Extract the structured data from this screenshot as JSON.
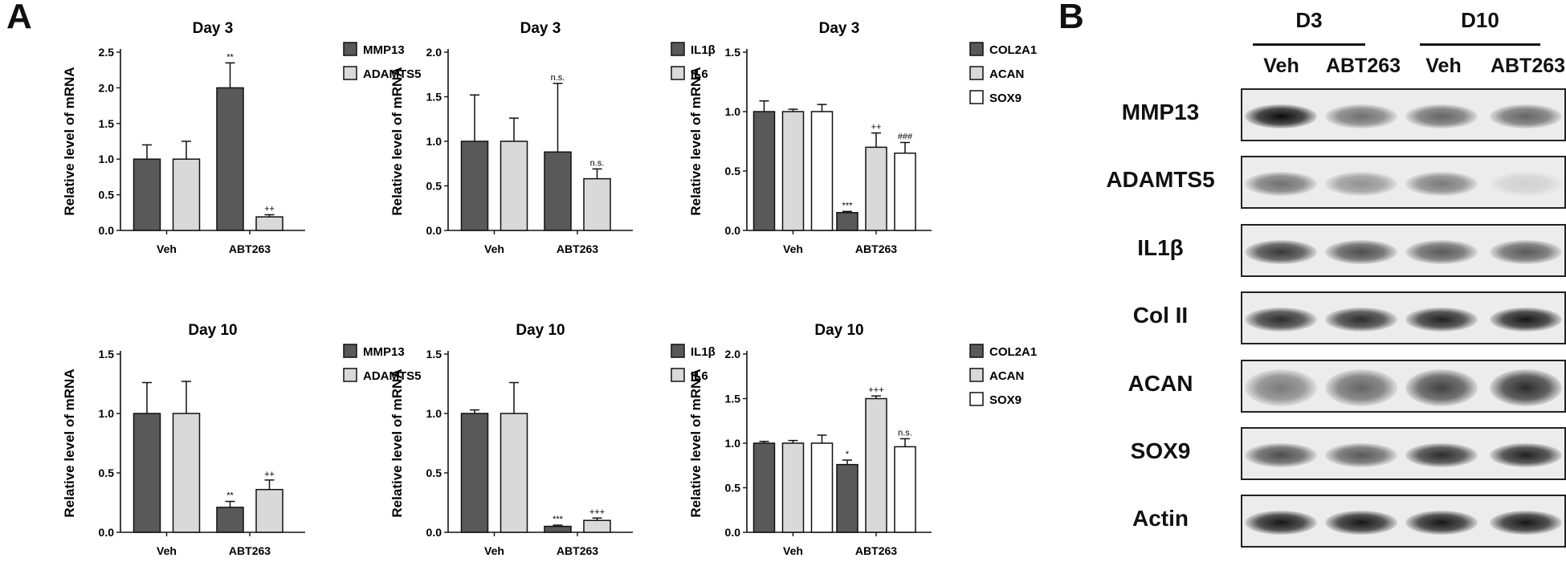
{
  "panel_a": {
    "label": "A"
  },
  "panel_b": {
    "label": "B"
  },
  "chart_data": [
    {
      "type": "bar",
      "title": "Day 3",
      "ylabel": "Relative level of mRNA",
      "ylim": [
        0,
        2.5
      ],
      "yticks": [
        "0.0",
        "0.5",
        "1.0",
        "1.5",
        "2.0",
        "2.5"
      ],
      "categories": [
        "Veh",
        "ABT263"
      ],
      "series": [
        {
          "name": "MMP13",
          "color": "#595959",
          "values": [
            1.0,
            2.0
          ],
          "errors": [
            0.2,
            0.35
          ],
          "sig": [
            "",
            "**"
          ]
        },
        {
          "name": "ADAMTS5",
          "color": "#d9d9d9",
          "values": [
            1.0,
            0.19
          ],
          "errors": [
            0.25,
            0.03
          ],
          "sig": [
            "",
            "++"
          ]
        }
      ]
    },
    {
      "type": "bar",
      "title": "Day 3",
      "ylabel": "Relative level of mRNA",
      "ylim": [
        0,
        2.0
      ],
      "yticks": [
        "0.0",
        "0.5",
        "1.0",
        "1.5",
        "2.0"
      ],
      "categories": [
        "Veh",
        "ABT263"
      ],
      "series": [
        {
          "name": "IL1β",
          "color": "#595959",
          "values": [
            1.0,
            0.88
          ],
          "errors": [
            0.52,
            0.77
          ],
          "sig": [
            "",
            "n.s."
          ]
        },
        {
          "name": "IL6",
          "color": "#d9d9d9",
          "values": [
            1.0,
            0.58
          ],
          "errors": [
            0.26,
            0.11
          ],
          "sig": [
            "",
            "n.s."
          ]
        }
      ]
    },
    {
      "type": "bar",
      "title": "Day 3",
      "ylabel": "Relative level of mRNA",
      "ylim": [
        0,
        1.5
      ],
      "yticks": [
        "0.0",
        "0.5",
        "1.0",
        "1.5"
      ],
      "categories": [
        "Veh",
        "ABT263"
      ],
      "series": [
        {
          "name": "COL2A1",
          "color": "#595959",
          "values": [
            1.0,
            0.15
          ],
          "errors": [
            0.09,
            0.01
          ],
          "sig": [
            "",
            "***"
          ]
        },
        {
          "name": "ACAN",
          "color": "#d9d9d9",
          "values": [
            1.0,
            0.7
          ],
          "errors": [
            0.02,
            0.12
          ],
          "sig": [
            "",
            "++"
          ]
        },
        {
          "name": "SOX9",
          "color": "#ffffff",
          "values": [
            1.0,
            0.65
          ],
          "errors": [
            0.06,
            0.09
          ],
          "sig": [
            "",
            "###"
          ]
        }
      ]
    },
    {
      "type": "bar",
      "title": "Day 10",
      "ylabel": "Relative level of mRNA",
      "ylim": [
        0,
        1.5
      ],
      "yticks": [
        "0.0",
        "0.5",
        "1.0",
        "1.5"
      ],
      "categories": [
        "Veh",
        "ABT263"
      ],
      "series": [
        {
          "name": "MMP13",
          "color": "#595959",
          "values": [
            1.0,
            0.21
          ],
          "errors": [
            0.26,
            0.05
          ],
          "sig": [
            "",
            "**"
          ]
        },
        {
          "name": "ADAMTS5",
          "color": "#d9d9d9",
          "values": [
            1.0,
            0.36
          ],
          "errors": [
            0.27,
            0.08
          ],
          "sig": [
            "",
            "++"
          ]
        }
      ]
    },
    {
      "type": "bar",
      "title": "Day 10",
      "ylabel": "Relative level of mRNA",
      "ylim": [
        0,
        1.5
      ],
      "yticks": [
        "0.0",
        "0.5",
        "1.0",
        "1.5"
      ],
      "categories": [
        "Veh",
        "ABT263"
      ],
      "series": [
        {
          "name": "IL1β",
          "color": "#595959",
          "values": [
            1.0,
            0.05
          ],
          "errors": [
            0.03,
            0.01
          ],
          "sig": [
            "",
            "***"
          ]
        },
        {
          "name": "IL6",
          "color": "#d9d9d9",
          "values": [
            1.0,
            0.1
          ],
          "errors": [
            0.26,
            0.02
          ],
          "sig": [
            "",
            "+++"
          ]
        }
      ]
    },
    {
      "type": "bar",
      "title": "Day 10",
      "ylabel": "Relative level of mRNA",
      "ylim": [
        0,
        2.0
      ],
      "yticks": [
        "0.0",
        "0.5",
        "1.0",
        "1.5",
        "2.0"
      ],
      "categories": [
        "Veh",
        "ABT263"
      ],
      "series": [
        {
          "name": "COL2A1",
          "color": "#595959",
          "values": [
            1.0,
            0.76
          ],
          "errors": [
            0.02,
            0.05
          ],
          "sig": [
            "",
            "*"
          ]
        },
        {
          "name": "ACAN",
          "color": "#d9d9d9",
          "values": [
            1.0,
            1.5
          ],
          "errors": [
            0.03,
            0.03
          ],
          "sig": [
            "",
            "+++"
          ]
        },
        {
          "name": "SOX9",
          "color": "#ffffff",
          "values": [
            1.0,
            0.96
          ],
          "errors": [
            0.09,
            0.09
          ],
          "sig": [
            "",
            "n.s."
          ]
        }
      ]
    }
  ],
  "blot": {
    "groups": [
      "D3",
      "D10"
    ],
    "lanes": [
      "Veh",
      "ABT263",
      "Veh",
      "ABT263"
    ],
    "rows": [
      {
        "label": "MMP13",
        "intensity": [
          1.0,
          0.55,
          0.6,
          0.6
        ]
      },
      {
        "label": "ADAMTS5",
        "intensity": [
          0.55,
          0.4,
          0.5,
          0.12
        ]
      },
      {
        "label": "IL1β",
        "intensity": [
          0.8,
          0.7,
          0.65,
          0.65
        ]
      },
      {
        "label": "Col II",
        "intensity": [
          0.85,
          0.85,
          0.9,
          0.95
        ]
      },
      {
        "label": "ACAN",
        "intensity": [
          0.5,
          0.6,
          0.75,
          0.85
        ]
      },
      {
        "label": "SOX9",
        "intensity": [
          0.7,
          0.65,
          0.85,
          0.9
        ]
      },
      {
        "label": "Actin",
        "intensity": [
          0.95,
          0.95,
          0.95,
          0.95
        ]
      }
    ]
  }
}
